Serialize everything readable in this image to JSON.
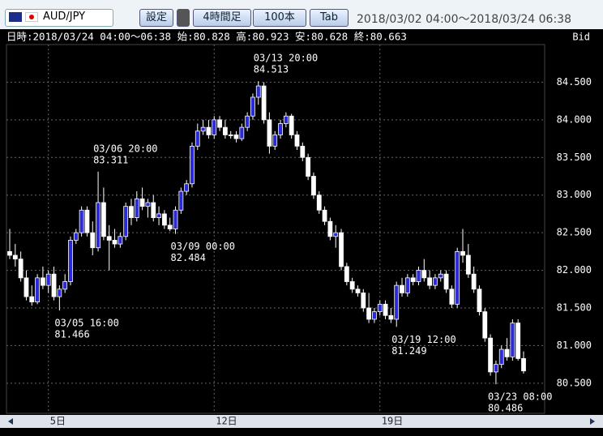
{
  "toolbar": {
    "symbol": "AUD/JPY",
    "buttons": [
      "設定",
      "4時間足",
      "100本",
      "Tab"
    ],
    "range": "2018/03/02 04:00～2018/03/24 06:38"
  },
  "info": {
    "text": "日時:2018/03/24 04:00～06:38 始:80.828 高:80.923 安:80.628 終:80.663",
    "side": "Bid"
  },
  "chart_data": {
    "type": "candlestick",
    "up_color": "#2a2ad8",
    "down_color": "#ffffff",
    "wick_color": "#ffffff",
    "grid": true,
    "ylim": [
      80.1,
      85.0
    ],
    "yticks": [
      {
        "value": 80.5,
        "label": "80.500"
      },
      {
        "value": 81,
        "label": "81.000"
      },
      {
        "value": 81.5,
        "label": "81.500"
      },
      {
        "value": 82,
        "label": "82.000"
      },
      {
        "value": 82.5,
        "label": "82.500"
      },
      {
        "value": 83,
        "label": "83.000"
      },
      {
        "value": 83.5,
        "label": "83.500"
      },
      {
        "value": 84,
        "label": "84.000"
      },
      {
        "value": 84.5,
        "label": "84.500"
      }
    ],
    "xticks": [
      {
        "value": 7,
        "label": "5日"
      },
      {
        "value": 37,
        "label": "12日"
      },
      {
        "value": 67,
        "label": "19日"
      }
    ],
    "annotations": [
      {
        "label": "03/05 16:00",
        "value": 81.466
      },
      {
        "label": "03/06 20:00",
        "value": 83.311
      },
      {
        "label": "03/09 00:00",
        "value": 82.484
      },
      {
        "label": "03/13 20:00",
        "value": 84.513
      },
      {
        "label": "03/19 12:00",
        "value": 81.249
      },
      {
        "label": "03/23 08:00",
        "value": 80.486
      }
    ],
    "open": [
      82.25,
      82.2,
      82.15,
      81.9,
      81.65,
      81.58,
      81.9,
      81.8,
      81.95,
      81.65,
      81.75,
      81.85,
      82.4,
      82.5,
      82.8,
      82.5,
      82.3,
      82.9,
      82.45,
      82.4,
      82.35,
      82.45,
      82.85,
      82.7,
      82.95,
      82.85,
      82.9,
      82.7,
      82.75,
      82.6,
      82.55,
      82.8,
      83.05,
      83.15,
      83.65,
      83.85,
      83.9,
      83.8,
      84.0,
      83.9,
      83.8,
      83.8,
      83.75,
      83.9,
      84.05,
      84.3,
      84.45,
      84.0,
      83.65,
      83.8,
      83.95,
      84.05,
      83.8,
      83.65,
      83.5,
      83.25,
      83.0,
      82.8,
      82.65,
      82.45,
      82.5,
      82.05,
      81.85,
      81.75,
      81.7,
      81.5,
      81.35,
      81.45,
      81.55,
      81.4,
      81.35,
      81.8,
      81.7,
      81.9,
      81.85,
      82.0,
      81.9,
      81.8,
      81.9,
      81.95,
      81.75,
      81.55,
      82.25,
      82.2,
      81.95,
      81.75,
      81.45,
      81.1,
      80.65,
      80.75,
      80.95,
      80.85,
      81.3,
      80.828
    ],
    "high": [
      82.55,
      82.35,
      82.25,
      82.0,
      81.8,
      81.95,
      82.05,
      82.0,
      82.05,
      81.8,
      81.95,
      82.45,
      82.55,
      82.85,
      82.85,
      82.65,
      83.311,
      83.1,
      82.6,
      82.55,
      82.5,
      82.9,
      82.95,
      83.05,
      83.1,
      82.95,
      83.0,
      82.85,
      82.8,
      82.7,
      82.85,
      83.1,
      83.2,
      83.7,
      83.95,
      84.0,
      84.0,
      84.05,
      84.05,
      84.0,
      83.85,
      83.85,
      83.95,
      84.1,
      84.35,
      84.513,
      84.5,
      84.1,
      83.85,
      84.0,
      84.1,
      84.08,
      83.85,
      83.7,
      83.55,
      83.3,
      83.05,
      82.85,
      82.7,
      82.6,
      82.55,
      82.1,
      81.9,
      81.8,
      81.75,
      81.7,
      81.5,
      81.6,
      81.6,
      81.5,
      81.85,
      81.9,
      81.95,
      81.95,
      82.05,
      82.15,
      82.0,
      81.95,
      82.0,
      82.0,
      81.8,
      82.3,
      82.55,
      82.35,
      82.05,
      81.8,
      81.5,
      81.15,
      80.8,
      81.0,
      81.1,
      81.35,
      81.35,
      80.923
    ],
    "low": [
      82.15,
      82.05,
      81.85,
      81.6,
      81.53,
      81.55,
      81.75,
      81.7,
      81.6,
      81.466,
      81.7,
      81.8,
      82.35,
      82.45,
      82.45,
      82.2,
      82.25,
      82.4,
      82.0,
      82.3,
      82.3,
      82.4,
      82.6,
      82.65,
      82.8,
      82.7,
      82.65,
      82.6,
      82.55,
      82.52,
      82.484,
      82.75,
      83.0,
      83.1,
      83.6,
      83.8,
      83.75,
      83.75,
      83.85,
      83.75,
      83.75,
      83.7,
      83.72,
      83.85,
      84.0,
      84.2,
      83.95,
      83.55,
      83.6,
      83.75,
      83.9,
      83.75,
      83.6,
      83.45,
      83.2,
      82.95,
      82.75,
      82.6,
      82.4,
      82.3,
      82.0,
      81.8,
      81.7,
      81.65,
      81.45,
      81.3,
      81.3,
      81.4,
      81.35,
      81.3,
      81.249,
      81.65,
      81.65,
      81.8,
      81.8,
      81.85,
      81.75,
      81.75,
      81.85,
      81.7,
      81.5,
      81.5,
      82.1,
      81.9,
      81.7,
      81.4,
      81.05,
      80.6,
      80.486,
      80.7,
      80.8,
      80.8,
      80.8,
      80.628
    ],
    "close": [
      82.2,
      82.15,
      81.9,
      81.65,
      81.58,
      81.9,
      81.8,
      81.95,
      81.65,
      81.75,
      81.85,
      82.4,
      82.5,
      82.8,
      82.5,
      82.3,
      82.9,
      82.45,
      82.4,
      82.35,
      82.45,
      82.85,
      82.7,
      82.95,
      82.85,
      82.9,
      82.7,
      82.75,
      82.6,
      82.55,
      82.8,
      83.05,
      83.15,
      83.65,
      83.85,
      83.9,
      83.8,
      84.0,
      83.9,
      83.8,
      83.8,
      83.75,
      83.9,
      84.05,
      84.3,
      84.45,
      84.0,
      83.65,
      83.8,
      83.95,
      84.05,
      83.8,
      83.65,
      83.5,
      83.25,
      83.0,
      82.8,
      82.65,
      82.45,
      82.5,
      82.05,
      81.85,
      81.75,
      81.7,
      81.5,
      81.35,
      81.45,
      81.55,
      81.4,
      81.35,
      81.8,
      81.7,
      81.9,
      81.85,
      82.0,
      81.9,
      81.8,
      81.9,
      81.95,
      81.75,
      81.55,
      82.25,
      82.2,
      81.95,
      81.75,
      81.45,
      81.1,
      80.65,
      80.75,
      80.95,
      80.85,
      81.3,
      80.828,
      80.663
    ]
  }
}
